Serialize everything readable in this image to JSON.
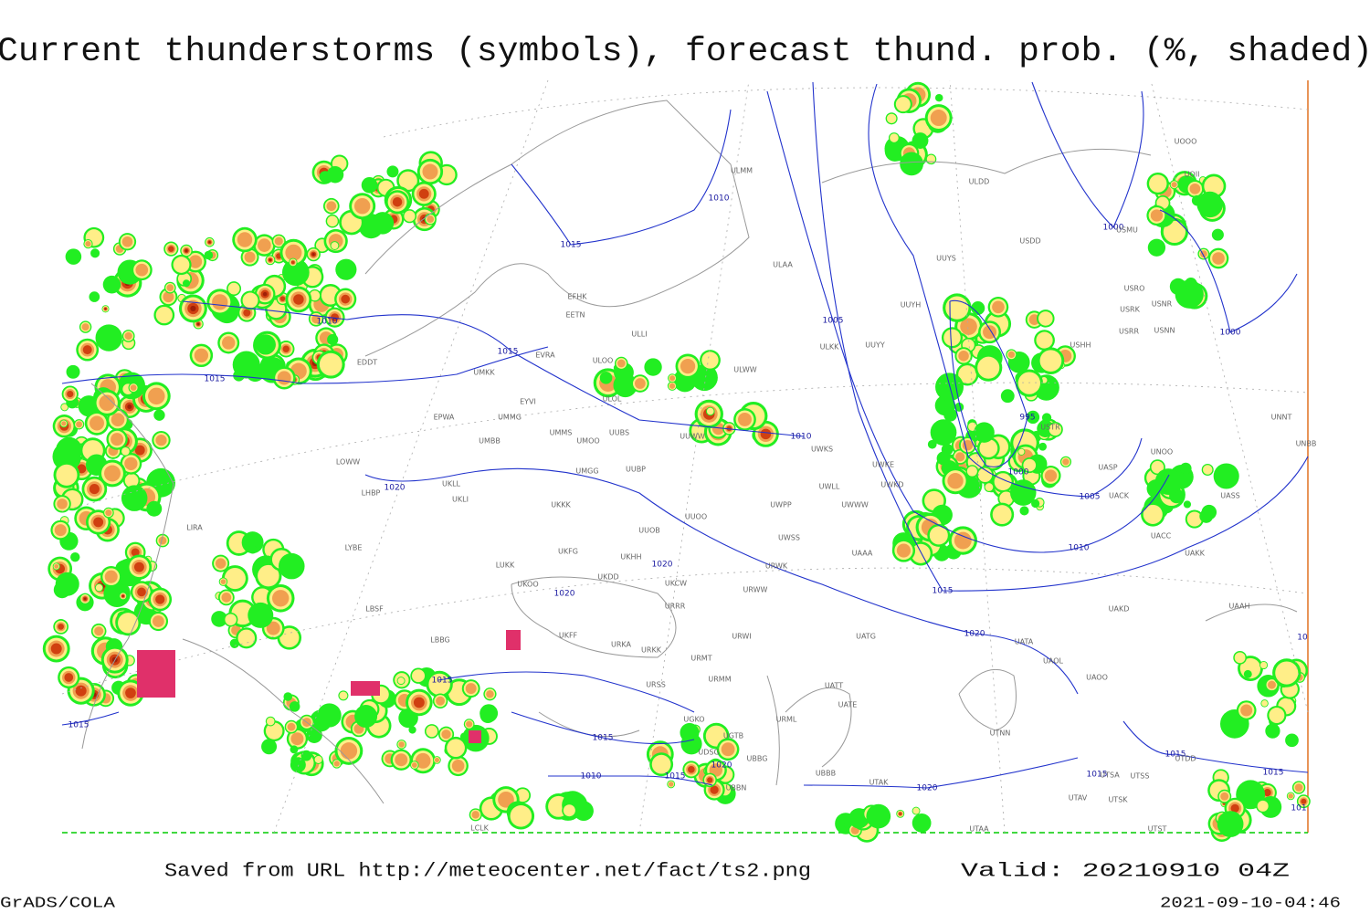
{
  "title": "Current thunderstorms (symbols), forecast thund. prob. (%, shaded)",
  "footer": {
    "source": "Saved from URL http://meteocenter.net/fact/ts2.png",
    "valid": "Valid: 20210910 04Z",
    "software": "GrADS/COLA",
    "timestamp": "2021-09-10-04:46"
  },
  "isobar_labels": [
    "1010",
    "1015",
    "1015",
    "1015",
    "1010",
    "1005",
    "1000",
    "1000",
    "995",
    "1000",
    "1005",
    "1010",
    "1015",
    "1010",
    "1020",
    "1020",
    "1020",
    "1020",
    "1015",
    "1015",
    "1010",
    "1015",
    "1020",
    "1020",
    "1015",
    "1015",
    "1015",
    "1015",
    "101",
    "10"
  ],
  "stations": [
    "ULMM",
    "ULDD",
    "USDD",
    "UUYS",
    "ULAA",
    "USRO",
    "USRK",
    "USNR",
    "EFHK",
    "EETN",
    "USRR",
    "USNN",
    "UUYH",
    "ULLI",
    "UUYY",
    "ULKK",
    "USHH",
    "EVRA",
    "ULOO",
    "EDDT",
    "ULWW",
    "UMKK",
    "EYVI",
    "ULOL",
    "EPWA",
    "UMMG",
    "UMMS",
    "UMOO",
    "UUBS",
    "UMBB",
    "UUWW",
    "UWKS",
    "USTR",
    "UNOO",
    "UNNT",
    "UNBB",
    "LOWW",
    "UKLL",
    "UKLI",
    "UMGG",
    "UUBP",
    "UWKE",
    "UWKD",
    "UASP",
    "UACK",
    "UASS",
    "LHBP",
    "UKKK",
    "UUOO",
    "UWPP",
    "UWWW",
    "UWLL",
    "UUOB",
    "LYBE",
    "LUKK",
    "UKHH",
    "UKFG",
    "UKDD",
    "UWSS",
    "UAAA",
    "UACC",
    "UAKK",
    "UKCW",
    "URWK",
    "LBSF",
    "UKOO",
    "URRR",
    "URWW",
    "UAKD",
    "UAAH",
    "LBBG",
    "UKFF",
    "URKA",
    "URKK",
    "URWI",
    "UATG",
    "UATA",
    "UAOL",
    "URMT",
    "URSS",
    "URMM",
    "UATT",
    "UATE",
    "UAOO",
    "URML",
    "UGKO",
    "UGTB",
    "UTNN",
    "UDSG",
    "UBBG",
    "UBBN",
    "UBBB",
    "UTAK",
    "UTSA",
    "UTSS",
    "UTAV",
    "UTSK",
    "UTST",
    "UTAA",
    "LCLK",
    "LIRA",
    "UTDD",
    "UOII",
    "UOOO",
    "USMU"
  ]
}
